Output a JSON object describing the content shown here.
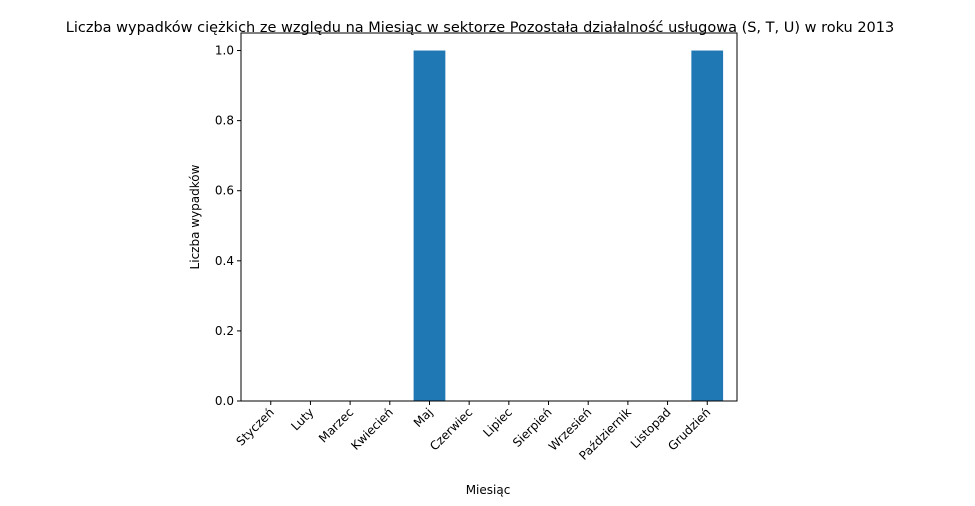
{
  "chart_data": {
    "type": "bar",
    "title": "Liczba wypadków ciężkich ze względu na Miesiąc w sektorze Pozostała działalność usługowa (S, T, U) w roku 2013",
    "xlabel": "Miesiąc",
    "ylabel": "Liczba wypadków",
    "categories": [
      "Styczeń",
      "Luty",
      "Marzec",
      "Kwiecień",
      "Maj",
      "Czerwiec",
      "Lipiec",
      "Sierpień",
      "Wrzesień",
      "Październik",
      "Listopad",
      "Grudzień"
    ],
    "values": [
      0,
      0,
      0,
      0,
      1,
      0,
      0,
      0,
      0,
      0,
      0,
      1
    ],
    "ylim": [
      0,
      1.05
    ],
    "yticks": [
      "0.0",
      "0.2",
      "0.4",
      "0.6",
      "0.8",
      "1.0"
    ],
    "bar_color": "#1f77b4",
    "grid": false,
    "legend": "none"
  }
}
